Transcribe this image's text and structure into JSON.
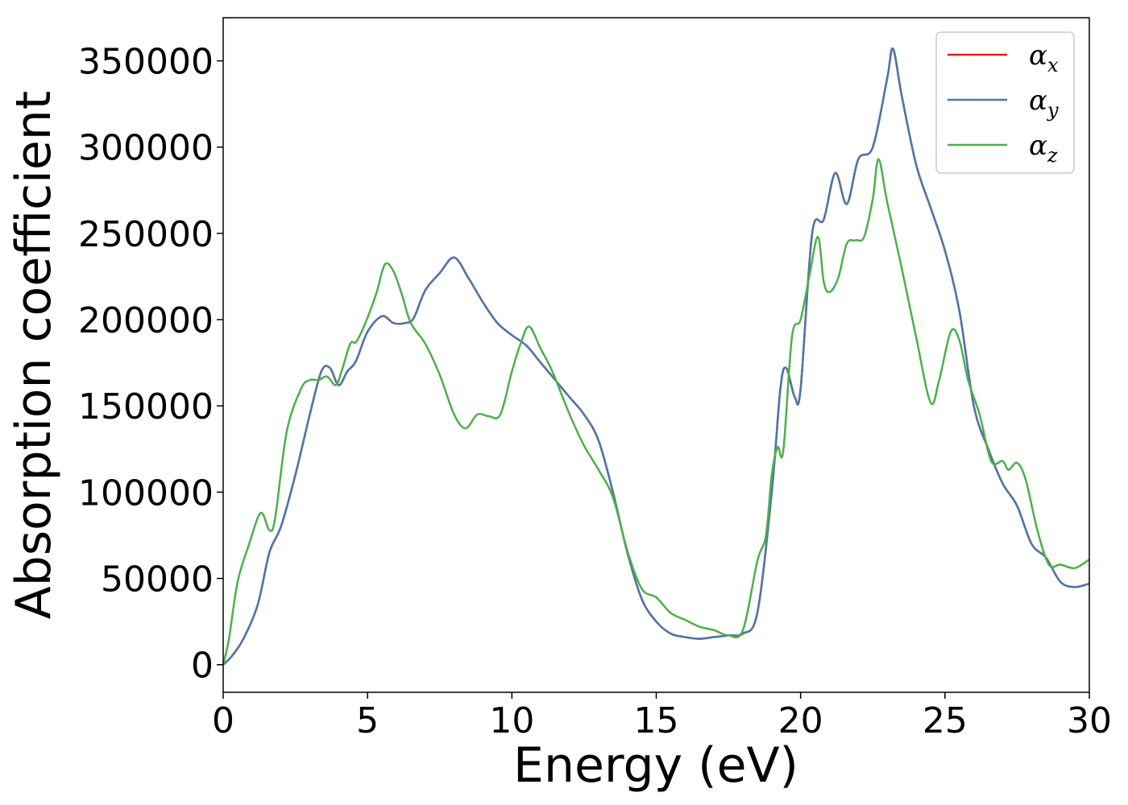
{
  "chart_data": {
    "type": "line",
    "title": "",
    "xlabel": "Energy (eV)",
    "ylabel": "Absorption coefficient",
    "xlim": [
      0,
      30
    ],
    "ylim": [
      -16000,
      375000
    ],
    "xticks": [
      0,
      5,
      10,
      15,
      20,
      25,
      30
    ],
    "yticks": [
      0,
      50000,
      100000,
      150000,
      200000,
      250000,
      300000,
      350000
    ],
    "grid": false,
    "legend_position": "top-right",
    "series": [
      {
        "name": "αx",
        "legend_base": "α",
        "legend_sub": "x",
        "color": "#e41a1c",
        "x": [
          0,
          0.3,
          0.7,
          1.2,
          1.6,
          2.0,
          2.5,
          3.0,
          3.4,
          3.7,
          4.0,
          4.3,
          4.6,
          5.0,
          5.5,
          5.9,
          6.3,
          6.6,
          7.0,
          7.5,
          8.0,
          8.5,
          9.0,
          9.5,
          10.0,
          10.5,
          11.0,
          11.5,
          12.0,
          12.5,
          13.0,
          13.5,
          14.0,
          14.5,
          15.0,
          15.5,
          16.0,
          16.5,
          17.0,
          17.5,
          18.0,
          18.5,
          19.0,
          19.3,
          19.5,
          19.8,
          20.0,
          20.4,
          20.8,
          21.2,
          21.6,
          22.0,
          22.5,
          23.0,
          23.2,
          23.5,
          24.0,
          24.5,
          25.0,
          25.5,
          26.0,
          26.5,
          27.0,
          27.5,
          28.0,
          28.5,
          29.0,
          29.5,
          30.0
        ],
        "y": [
          0,
          5000,
          15000,
          35000,
          65000,
          80000,
          110000,
          145000,
          170000,
          172000,
          162000,
          170000,
          176000,
          193000,
          202000,
          198000,
          198000,
          201000,
          217000,
          227000,
          236000,
          224000,
          210000,
          198000,
          191000,
          185000,
          175000,
          165000,
          155000,
          145000,
          130000,
          100000,
          65000,
          38000,
          25000,
          18000,
          16000,
          15000,
          16000,
          17000,
          18000,
          30000,
          100000,
          160000,
          172000,
          155000,
          160000,
          250000,
          258000,
          285000,
          267000,
          293000,
          300000,
          340000,
          357000,
          330000,
          290000,
          265000,
          240000,
          205000,
          150000,
          125000,
          105000,
          92000,
          70000,
          62000,
          48000,
          45000,
          47000
        ]
      },
      {
        "name": "αy",
        "legend_base": "α",
        "legend_sub": "y",
        "color": "#4a78ab",
        "x": [
          0,
          0.3,
          0.7,
          1.2,
          1.6,
          2.0,
          2.5,
          3.0,
          3.4,
          3.7,
          4.0,
          4.3,
          4.6,
          5.0,
          5.5,
          5.9,
          6.3,
          6.6,
          7.0,
          7.5,
          8.0,
          8.5,
          9.0,
          9.5,
          10.0,
          10.5,
          11.0,
          11.5,
          12.0,
          12.5,
          13.0,
          13.5,
          14.0,
          14.5,
          15.0,
          15.5,
          16.0,
          16.5,
          17.0,
          17.5,
          18.0,
          18.5,
          19.0,
          19.3,
          19.5,
          19.8,
          20.0,
          20.4,
          20.8,
          21.2,
          21.6,
          22.0,
          22.5,
          23.0,
          23.2,
          23.5,
          24.0,
          24.5,
          25.0,
          25.5,
          26.0,
          26.5,
          27.0,
          27.5,
          28.0,
          28.5,
          29.0,
          29.5,
          30.0
        ],
        "y": [
          0,
          5000,
          15000,
          35000,
          65000,
          80000,
          110000,
          145000,
          170000,
          172000,
          162000,
          170000,
          176000,
          193000,
          202000,
          198000,
          198000,
          201000,
          217000,
          227000,
          236000,
          224000,
          210000,
          198000,
          191000,
          185000,
          175000,
          165000,
          155000,
          145000,
          130000,
          100000,
          65000,
          38000,
          25000,
          18000,
          16000,
          15000,
          16000,
          17000,
          18000,
          30000,
          100000,
          160000,
          172000,
          155000,
          160000,
          250000,
          258000,
          285000,
          267000,
          293000,
          300000,
          340000,
          357000,
          330000,
          290000,
          265000,
          240000,
          205000,
          150000,
          125000,
          105000,
          92000,
          70000,
          62000,
          48000,
          45000,
          47000
        ]
      },
      {
        "name": "αz",
        "legend_base": "α",
        "legend_sub": "z",
        "color": "#4daf4a",
        "x": [
          0,
          0.2,
          0.5,
          0.9,
          1.3,
          1.6,
          1.8,
          2.2,
          2.7,
          3.0,
          3.3,
          3.6,
          3.9,
          4.1,
          4.4,
          4.6,
          4.9,
          5.3,
          5.6,
          5.9,
          6.2,
          6.5,
          7.0,
          7.5,
          8.0,
          8.4,
          8.8,
          9.2,
          9.6,
          10.0,
          10.3,
          10.6,
          11.0,
          11.4,
          12.0,
          12.5,
          13.0,
          13.5,
          14.0,
          14.5,
          15.0,
          15.5,
          16.0,
          16.5,
          17.0,
          17.5,
          18.0,
          18.5,
          18.8,
          19.0,
          19.2,
          19.4,
          19.7,
          20.0,
          20.3,
          20.6,
          20.8,
          21.0,
          21.3,
          21.6,
          21.9,
          22.2,
          22.5,
          22.7,
          23.0,
          23.5,
          24.0,
          24.5,
          24.8,
          25.2,
          25.5,
          25.8,
          26.2,
          26.6,
          27.0,
          27.2,
          27.5,
          27.8,
          28.2,
          28.6,
          29.0,
          29.5,
          30.0
        ],
        "y": [
          0,
          15000,
          48000,
          70000,
          88000,
          78000,
          85000,
          135000,
          160000,
          165000,
          165000,
          167000,
          162000,
          170000,
          186000,
          187000,
          197000,
          215000,
          232000,
          228000,
          214000,
          198000,
          186000,
          168000,
          145000,
          137000,
          145000,
          144000,
          145000,
          170000,
          186000,
          196000,
          183000,
          170000,
          145000,
          127000,
          113000,
          97000,
          66000,
          44000,
          39000,
          30000,
          26000,
          22000,
          20000,
          17000,
          20000,
          60000,
          75000,
          110000,
          126000,
          124000,
          190000,
          200000,
          225000,
          248000,
          222000,
          216000,
          224000,
          244000,
          246000,
          248000,
          270000,
          293000,
          268000,
          230000,
          190000,
          152000,
          165000,
          193000,
          188000,
          165000,
          145000,
          118000,
          118000,
          113000,
          117000,
          107000,
          78000,
          58000,
          58000,
          56000,
          61000
        ]
      }
    ]
  }
}
